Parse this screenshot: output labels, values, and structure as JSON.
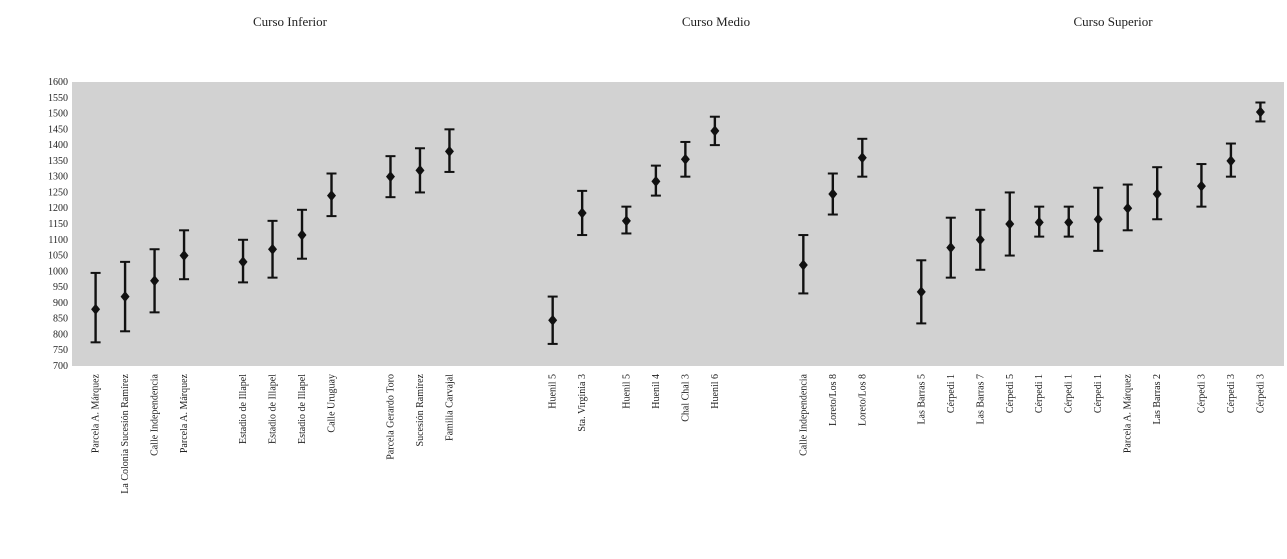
{
  "chart_data": {
    "type": "scatter",
    "subtype": "error-bar",
    "section_titles": [
      "Curso Inferior",
      "Curso Medio",
      "Curso Superior"
    ],
    "ylim": [
      700,
      1600
    ],
    "yticks": [
      700,
      750,
      800,
      850,
      900,
      950,
      1000,
      1050,
      1100,
      1150,
      1200,
      1250,
      1300,
      1350,
      1400,
      1450,
      1500,
      1550,
      1600
    ],
    "grid": false,
    "legend": "none",
    "colors": {
      "plot_background": "#d2d2d2",
      "marker": "#111111",
      "text": "#222222"
    },
    "points": [
      {
        "label": "Parcela A. Márquez",
        "x": 1,
        "y": 880,
        "low": 775,
        "high": 995
      },
      {
        "label": "La Colonia Sucesión Ramírez",
        "x": 2,
        "y": 920,
        "low": 810,
        "high": 1030
      },
      {
        "label": "Calle Independencia",
        "x": 3,
        "y": 970,
        "low": 870,
        "high": 1070
      },
      {
        "label": "Parcela A. Márquez",
        "x": 4,
        "y": 1050,
        "low": 975,
        "high": 1130
      },
      {
        "label": "Estadio de Illapel",
        "x": 6,
        "y": 1030,
        "low": 965,
        "high": 1100
      },
      {
        "label": "Estadio de Illapel",
        "x": 7,
        "y": 1070,
        "low": 980,
        "high": 1160
      },
      {
        "label": "Estadio de Illapel",
        "x": 8,
        "y": 1115,
        "low": 1040,
        "high": 1195
      },
      {
        "label": "Calle Uruguay",
        "x": 9,
        "y": 1240,
        "low": 1175,
        "high": 1310
      },
      {
        "label": "Parcela Gerardo Toro",
        "x": 11,
        "y": 1300,
        "low": 1235,
        "high": 1365
      },
      {
        "label": "Sucesión Ramírez",
        "x": 12,
        "y": 1320,
        "low": 1250,
        "high": 1390
      },
      {
        "label": "Familia Carvajal",
        "x": 13,
        "y": 1380,
        "low": 1315,
        "high": 1450
      },
      {
        "label": "Huenil 5",
        "x": 16.5,
        "y": 845,
        "low": 770,
        "high": 920
      },
      {
        "label": "Sta. Virginia 3",
        "x": 17.5,
        "y": 1185,
        "low": 1115,
        "high": 1255
      },
      {
        "label": "Huenil 5",
        "x": 19,
        "y": 1160,
        "low": 1120,
        "high": 1205
      },
      {
        "label": "Huenil 4",
        "x": 20,
        "y": 1285,
        "low": 1240,
        "high": 1335
      },
      {
        "label": "Chal Chal 3",
        "x": 21,
        "y": 1355,
        "low": 1300,
        "high": 1410
      },
      {
        "label": "Huenil 6",
        "x": 22,
        "y": 1445,
        "low": 1400,
        "high": 1490
      },
      {
        "label": "Calle Independencia",
        "x": 25,
        "y": 1020,
        "low": 930,
        "high": 1115
      },
      {
        "label": "Loreto/Los 8",
        "x": 26,
        "y": 1245,
        "low": 1180,
        "high": 1310
      },
      {
        "label": "Loreto/Los 8",
        "x": 27,
        "y": 1360,
        "low": 1300,
        "high": 1420
      },
      {
        "label": "Las Barras 5",
        "x": 29,
        "y": 935,
        "low": 835,
        "high": 1035
      },
      {
        "label": "Cérpedi 1",
        "x": 30,
        "y": 1075,
        "low": 980,
        "high": 1170
      },
      {
        "label": "Las Barras 7",
        "x": 31,
        "y": 1100,
        "low": 1005,
        "high": 1195
      },
      {
        "label": "Cérpedi 5",
        "x": 32,
        "y": 1150,
        "low": 1050,
        "high": 1250
      },
      {
        "label": "Cérpedi 1",
        "x": 33,
        "y": 1155,
        "low": 1110,
        "high": 1205
      },
      {
        "label": "Cérpedi 1",
        "x": 34,
        "y": 1155,
        "low": 1110,
        "high": 1205
      },
      {
        "label": "Cérpedi 1",
        "x": 35,
        "y": 1165,
        "low": 1065,
        "high": 1265
      },
      {
        "label": "Parcela A. Márquez",
        "x": 36,
        "y": 1200,
        "low": 1130,
        "high": 1275
      },
      {
        "label": "Las Barras 2",
        "x": 37,
        "y": 1245,
        "low": 1165,
        "high": 1330
      },
      {
        "label": "Cérpedi 3",
        "x": 38.5,
        "y": 1270,
        "low": 1205,
        "high": 1340
      },
      {
        "label": "Cérpedi 3",
        "x": 39.5,
        "y": 1350,
        "low": 1300,
        "high": 1405
      },
      {
        "label": "Cérpedi 3",
        "x": 40.5,
        "y": 1505,
        "low": 1475,
        "high": 1535
      }
    ]
  }
}
